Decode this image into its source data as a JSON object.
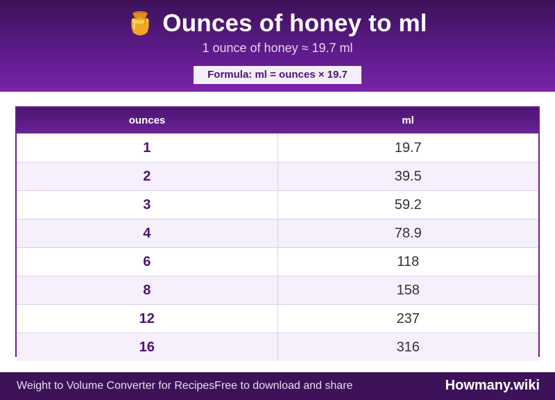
{
  "header": {
    "icon": "honey-jar-icon",
    "title": "Ounces of honey to ml",
    "subtitle": "1 ounce of honey ≈ 19.7 ml",
    "formula": "Formula: ml = ounces × 19.7"
  },
  "table": {
    "columns": [
      "ounces",
      "ml"
    ],
    "rows": [
      {
        "ounces": "1",
        "ml": "19.7"
      },
      {
        "ounces": "2",
        "ml": "39.5"
      },
      {
        "ounces": "3",
        "ml": "59.2"
      },
      {
        "ounces": "4",
        "ml": "78.9"
      },
      {
        "ounces": "6",
        "ml": "118"
      },
      {
        "ounces": "8",
        "ml": "158"
      },
      {
        "ounces": "12",
        "ml": "237"
      },
      {
        "ounces": "16",
        "ml": "316"
      }
    ]
  },
  "footer": {
    "left_text": "Weight to Volume Converter for RecipesFree to download and share",
    "brand": "Howmany.wiki"
  },
  "colors": {
    "header_dark": "#3d1258",
    "header_light": "#7a22a8",
    "accent": "#4b1470",
    "row_alt": "#f5f0fb"
  }
}
